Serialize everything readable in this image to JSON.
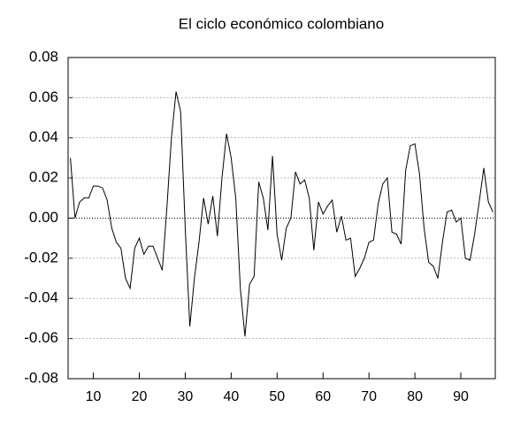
{
  "chart_data": {
    "type": "line",
    "title": "El ciclo económico colombiano",
    "x": [
      5,
      6,
      7,
      8,
      9,
      10,
      11,
      12,
      13,
      14,
      15,
      16,
      17,
      18,
      19,
      20,
      21,
      22,
      23,
      24,
      25,
      26,
      27,
      28,
      29,
      30,
      31,
      32,
      33,
      34,
      35,
      36,
      37,
      38,
      39,
      40,
      41,
      42,
      43,
      44,
      45,
      46,
      47,
      48,
      49,
      50,
      51,
      52,
      53,
      54,
      55,
      56,
      57,
      58,
      59,
      60,
      61,
      62,
      63,
      64,
      65,
      66,
      67,
      68,
      69,
      70,
      71,
      72,
      73,
      74,
      75,
      76,
      77,
      78,
      79,
      80,
      81,
      82,
      83,
      84,
      85,
      86,
      87,
      88,
      89,
      90,
      91,
      92,
      93,
      94,
      95,
      96,
      97
    ],
    "series": [
      {
        "color": "#000000",
        "values": [
          0.03,
          0.0,
          0.008,
          0.01,
          0.01,
          0.016,
          0.016,
          0.015,
          0.009,
          -0.005,
          -0.012,
          -0.015,
          -0.03,
          -0.035,
          -0.015,
          -0.01,
          -0.018,
          -0.014,
          -0.014,
          -0.02,
          -0.026,
          0.005,
          0.04,
          0.063,
          0.053,
          -0.005,
          -0.054,
          -0.03,
          -0.012,
          0.01,
          -0.003,
          0.011,
          -0.009,
          0.02,
          0.042,
          0.03,
          0.01,
          -0.035,
          -0.059,
          -0.033,
          -0.029,
          0.018,
          0.01,
          -0.006,
          0.031,
          -0.008,
          -0.021,
          -0.005,
          0.0,
          0.023,
          0.017,
          0.019,
          0.01,
          -0.016,
          0.008,
          0.002,
          0.006,
          0.009,
          -0.007,
          0.001,
          -0.011,
          -0.01,
          -0.029,
          -0.025,
          -0.02,
          -0.012,
          -0.011,
          0.007,
          0.017,
          0.02,
          -0.007,
          -0.008,
          -0.013,
          0.024,
          0.036,
          0.037,
          0.022,
          -0.005,
          -0.022,
          -0.024,
          -0.03,
          -0.012,
          0.003,
          0.004,
          -0.002,
          0.0,
          -0.02,
          -0.021,
          -0.008,
          0.008,
          0.025,
          0.008,
          0.003
        ]
      }
    ],
    "xlim": [
      4.5,
      97.5
    ],
    "xticks": [
      10,
      20,
      30,
      40,
      50,
      60,
      70,
      80,
      90
    ],
    "ylim": [
      -0.08,
      0.08
    ],
    "yticks": [
      -0.08,
      -0.06,
      -0.04,
      -0.02,
      {
        "value": 0,
        "label": "0.00"
      },
      0.02,
      0.04,
      0.06,
      0.08
    ],
    "grid": true,
    "zero_line": true
  }
}
